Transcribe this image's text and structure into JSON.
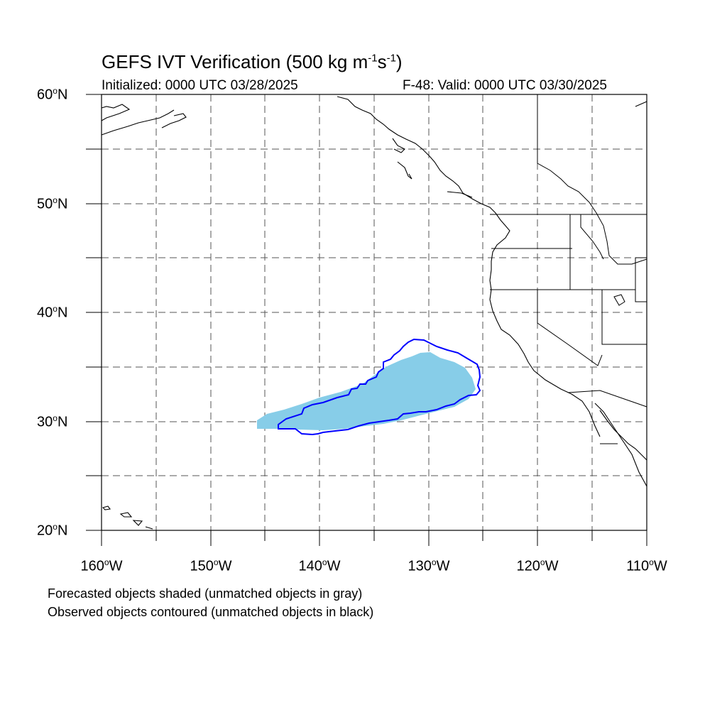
{
  "header": {
    "title_main": "GEFS IVT Verification (500 kg m",
    "title_exp1": "-1",
    "title_mid": "s",
    "title_exp2": "-1",
    "title_end": ")",
    "initialized": "Initialized: 0000 UTC 03/28/2025",
    "valid": "F-48: Valid: 0000 UTC 03/30/2025"
  },
  "axes": {
    "lat_labels": [
      {
        "num": "60",
        "hem": "N"
      },
      {
        "num": "50",
        "hem": "N"
      },
      {
        "num": "40",
        "hem": "N"
      },
      {
        "num": "30",
        "hem": "N"
      },
      {
        "num": "20",
        "hem": "N"
      }
    ],
    "lon_labels": [
      {
        "num": "160",
        "hem": "W"
      },
      {
        "num": "150",
        "hem": "W"
      },
      {
        "num": "140",
        "hem": "W"
      },
      {
        "num": "130",
        "hem": "W"
      },
      {
        "num": "120",
        "hem": "W"
      },
      {
        "num": "110",
        "hem": "W"
      }
    ],
    "degree_symbol": "o",
    "lat_range": [
      20,
      60
    ],
    "lon_range": [
      -160,
      -110
    ],
    "gridlines": "dashed every 5 degrees"
  },
  "legend": {
    "line1": "Forecasted objects shaded (unmatched objects in gray)",
    "line2": "Observed objects contoured (unmatched objects in black)"
  },
  "colors": {
    "forecast_fill": "#87cde8",
    "observed_contour": "#0000ff",
    "coastline": "#000000",
    "grid": "#555555"
  }
}
